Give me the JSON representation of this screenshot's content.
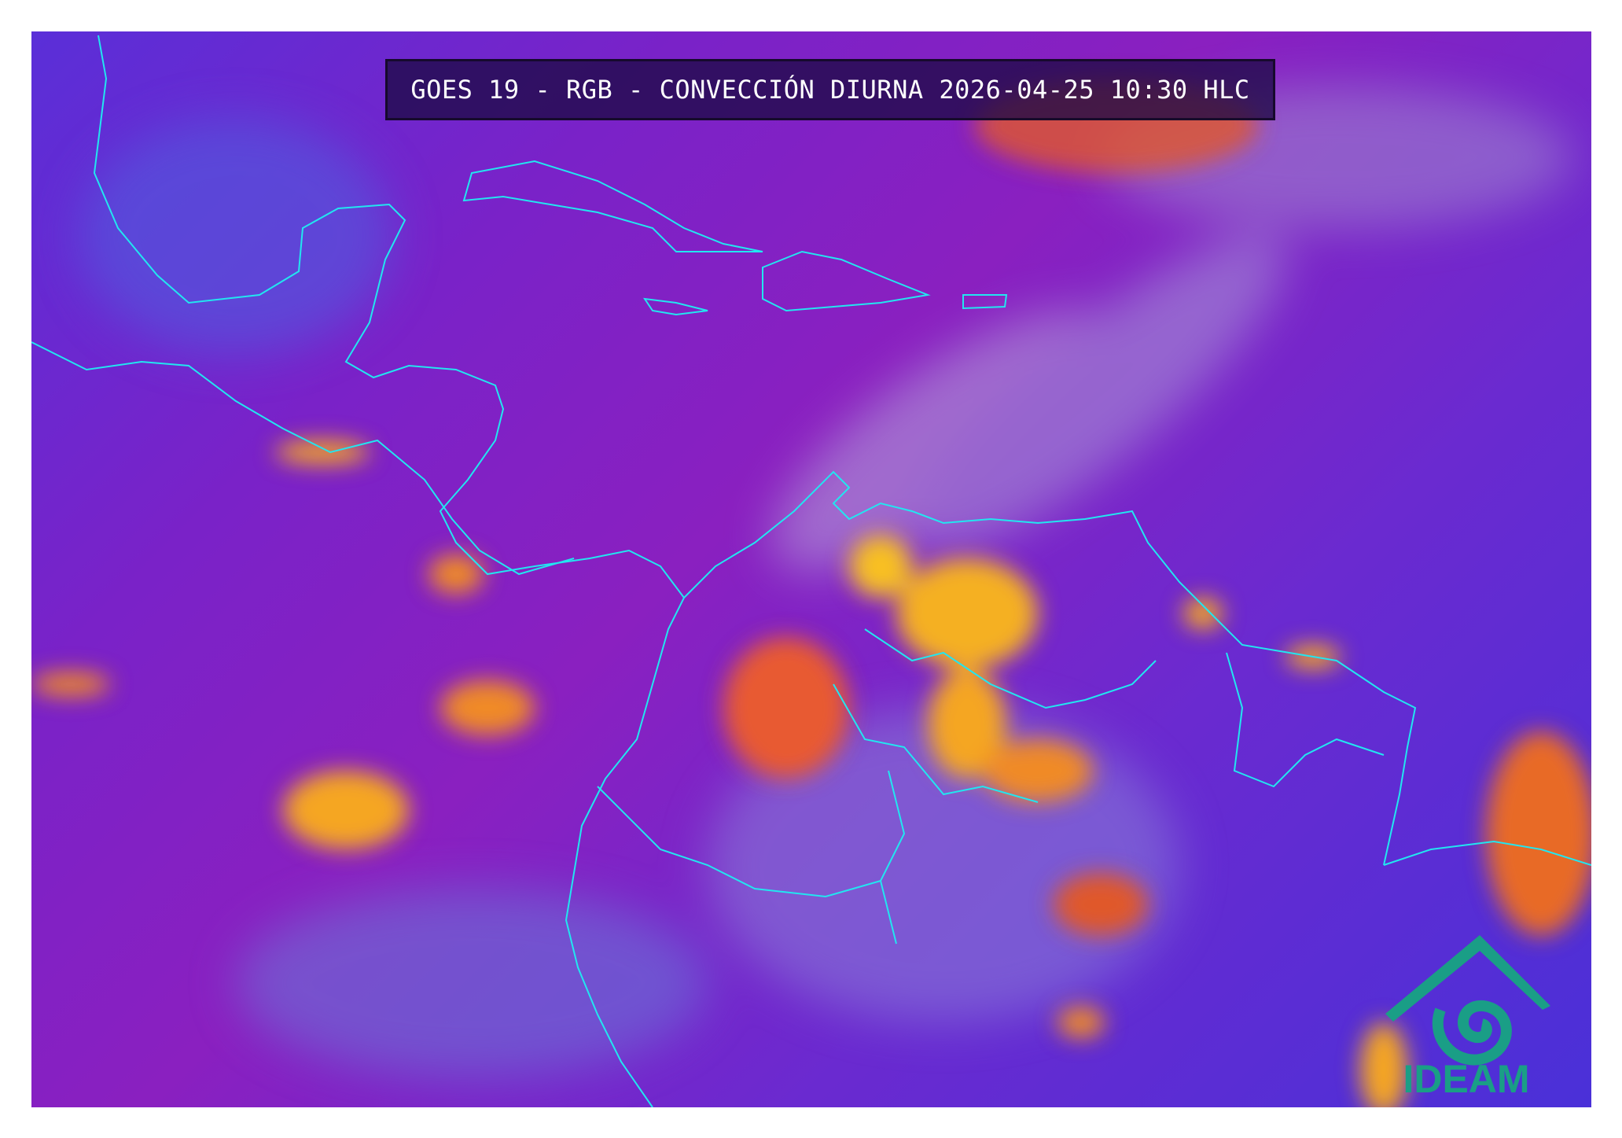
{
  "title": "GOES 19 - RGB - CONVECCIÓN DIURNA 2026-04-25 10:30 HLC",
  "logo": {
    "text": "IDEAM",
    "color": "#1a9e86"
  },
  "colors": {
    "background_sea": "#7a22c8",
    "coastline": "#22e6f0",
    "convection": "#f5a623"
  }
}
